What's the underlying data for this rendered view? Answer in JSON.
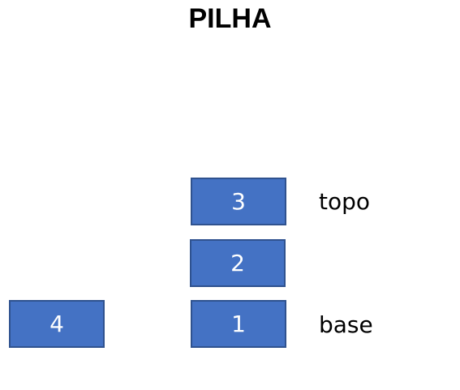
{
  "title": "PILHA",
  "colors": {
    "box_fill": "#4472c4",
    "box_border": "#2f528f",
    "box_text": "#ffffff"
  },
  "stack": {
    "items": [
      {
        "label": "3"
      },
      {
        "label": "2"
      },
      {
        "label": "1"
      }
    ],
    "top_label": "topo",
    "base_label": "base"
  },
  "outside_item": {
    "label": "4"
  }
}
